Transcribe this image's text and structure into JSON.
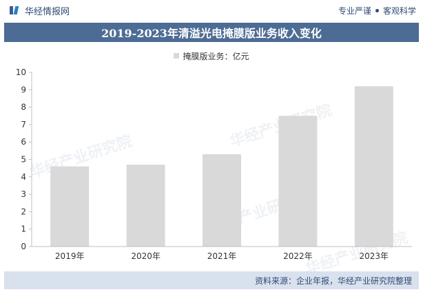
{
  "header": {
    "brand": "华经情报网",
    "slogan_left": "专业严谨",
    "slogan_right": "客观科学"
  },
  "watermark": "华经产业研究院",
  "footer": {
    "source": "资料来源：企业年报，华经产业研究院整理"
  },
  "chart_data": {
    "type": "bar",
    "title": "2019-2023年清溢光电掩膜版业务收入变化",
    "legend": "掩膜版业务：亿元",
    "categories": [
      "2019年",
      "2020年",
      "2021年",
      "2022年",
      "2023年"
    ],
    "values": [
      4.6,
      4.7,
      5.3,
      7.5,
      9.2
    ],
    "ylim": [
      0,
      10
    ],
    "yticks": [
      0,
      1,
      2,
      3,
      4,
      5,
      6,
      7,
      8,
      9,
      10
    ],
    "bar_color": "#d9d9d9",
    "grid": false
  }
}
